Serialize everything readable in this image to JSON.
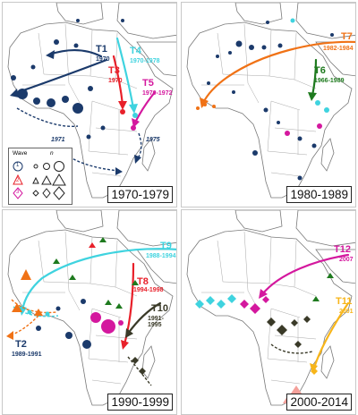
{
  "colors": {
    "land": "#ffffff",
    "border": "#8a8a8a",
    "navy": "#1b3a6b",
    "cyan": "#3fd3df",
    "red": "#e8202a",
    "magenta": "#d4189e",
    "orange": "#f07216",
    "green": "#1e7a1e",
    "olive": "#3a3a28",
    "gold": "#f7b51a",
    "salmon": "#f4a09a"
  },
  "panels": [
    {
      "id": "p1",
      "period": "1970-1979",
      "waves": [
        {
          "code": "T1",
          "years": "1970",
          "color": "navy"
        },
        {
          "code": "T3",
          "years": "1970",
          "color": "red"
        },
        {
          "code": "T4",
          "years": "1970-1978",
          "color": "cyan"
        },
        {
          "code": "T5",
          "years": "1970-1972",
          "color": "magenta"
        }
      ],
      "annotations": [
        "1971",
        "1975"
      ]
    },
    {
      "id": "p2",
      "period": "1980-1989",
      "waves": [
        {
          "code": "T7",
          "years": "1982-1984",
          "color": "orange"
        },
        {
          "code": "T6",
          "years": "1966-1989",
          "color": "green"
        }
      ]
    },
    {
      "id": "p3",
      "period": "1990-1999",
      "waves": [
        {
          "code": "T9",
          "years": "1988-1994",
          "color": "cyan"
        },
        {
          "code": "T8",
          "years": "1994-1998",
          "color": "red"
        },
        {
          "code": "T10",
          "years": "1991-1995",
          "color": "olive"
        },
        {
          "code": "T2",
          "years": "1989-1991",
          "color": "navy"
        }
      ]
    },
    {
      "id": "p4",
      "period": "2000-2014",
      "waves": [
        {
          "code": "T12",
          "years": "2007",
          "color": "magenta"
        },
        {
          "code": "T11",
          "years": "2001",
          "color": "gold"
        }
      ]
    }
  ],
  "legend": {
    "wave_header": "Wave",
    "n_header": "n",
    "wave_marks": [
      "1",
      "2",
      "3"
    ]
  }
}
